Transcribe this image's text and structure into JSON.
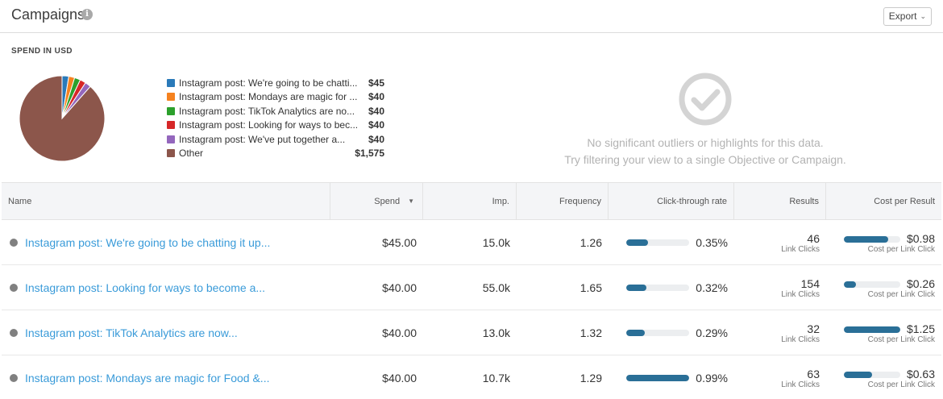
{
  "header": {
    "title": "Campaigns",
    "export_label": "Export"
  },
  "spend_section": {
    "label": "SPEND IN USD"
  },
  "legend": [
    {
      "label": "Instagram post: We're going to be chatti...",
      "value": "$45",
      "color": "#2a7ab9"
    },
    {
      "label": "Instagram post: Mondays are magic for ...",
      "value": "$40",
      "color": "#f5821f"
    },
    {
      "label": "Instagram post: TikTok Analytics are no...",
      "value": "$40",
      "color": "#2ca02c"
    },
    {
      "label": "Instagram post: Looking for ways to bec...",
      "value": "$40",
      "color": "#d62728"
    },
    {
      "label": "Instagram post: We've put together a...",
      "value": "$40",
      "color": "#9467bd"
    },
    {
      "label": "Other",
      "value": "$1,575",
      "color": "#8c564b"
    }
  ],
  "chart_data": {
    "type": "pie",
    "categories": [
      "Instagram post: We're going to be chatti...",
      "Instagram post: Mondays are magic for ...",
      "Instagram post: TikTok Analytics are no...",
      "Instagram post: Looking for ways to bec...",
      "Instagram post: We've put together a...",
      "Other"
    ],
    "values": [
      45,
      40,
      40,
      40,
      40,
      1575
    ],
    "colors": [
      "#2a7ab9",
      "#f5821f",
      "#2ca02c",
      "#d62728",
      "#9467bd",
      "#8c564b"
    ]
  },
  "empty_state": {
    "icon": "check-circle-icon",
    "line1": "No significant outliers or highlights for this data.",
    "line2": "Try filtering your view to a single Objective or Campaign."
  },
  "table": {
    "headers": {
      "name": "Name",
      "spend": "Spend",
      "imp": "Imp.",
      "frequency": "Frequency",
      "ctr": "Click-through rate",
      "results": "Results",
      "cpr": "Cost per Result"
    },
    "rows": [
      {
        "name": "Instagram post: We're going to be chatting it up...",
        "spend": "$45.00",
        "imp": "15.0k",
        "frequency": "1.26",
        "ctr": "0.35%",
        "ctr_fraction": 0.35,
        "results": "46",
        "results_sub": "Link Clicks",
        "cpr": "$0.98",
        "cpr_fraction": 0.78,
        "cpr_sub": "Cost per Link Click"
      },
      {
        "name": "Instagram post: Looking for ways to become a...",
        "spend": "$40.00",
        "imp": "55.0k",
        "frequency": "1.65",
        "ctr": "0.32%",
        "ctr_fraction": 0.32,
        "results": "154",
        "results_sub": "Link Clicks",
        "cpr": "$0.26",
        "cpr_fraction": 0.21,
        "cpr_sub": "Cost per Link Click"
      },
      {
        "name": "Instagram post: TikTok Analytics are now...",
        "spend": "$40.00",
        "imp": "13.0k",
        "frequency": "1.32",
        "ctr": "0.29%",
        "ctr_fraction": 0.29,
        "results": "32",
        "results_sub": "Link Clicks",
        "cpr": "$1.25",
        "cpr_fraction": 1.0,
        "cpr_sub": "Cost per Link Click"
      },
      {
        "name": "Instagram post: Mondays are magic for Food &...",
        "spend": "$40.00",
        "imp": "10.7k",
        "frequency": "1.29",
        "ctr": "0.99%",
        "ctr_fraction": 1.0,
        "results": "63",
        "results_sub": "Link Clicks",
        "cpr": "$0.63",
        "cpr_fraction": 0.5,
        "cpr_sub": "Cost per Link Click"
      }
    ]
  }
}
